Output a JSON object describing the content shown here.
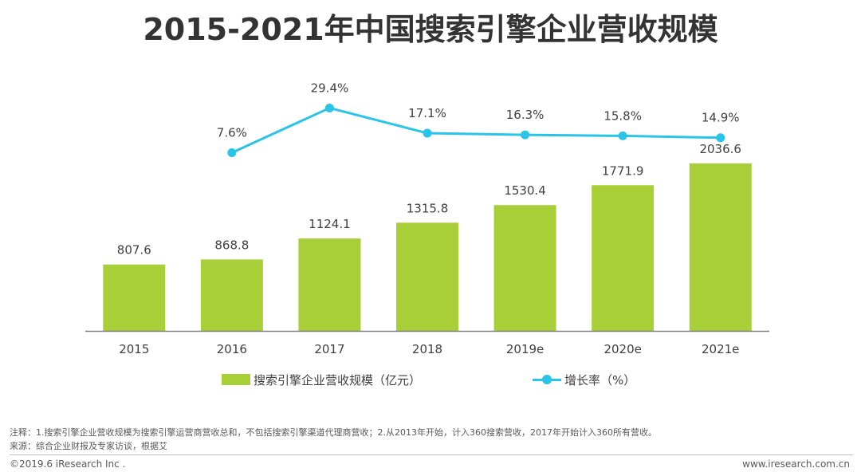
{
  "title": "2015-2021年中国搜索引擎企业营收规模",
  "colors": {
    "bar": "#a9cf38",
    "line": "#29c4e8",
    "axis": "#808080",
    "text": "#404040"
  },
  "chart_data": {
    "type": "bar",
    "categories": [
      "2015",
      "2016",
      "2017",
      "2018",
      "2019e",
      "2020e",
      "2021e"
    ],
    "series": [
      {
        "name": "搜索引擎企业营收规模（亿元）",
        "type": "bar",
        "values": [
          807.6,
          868.8,
          1124.1,
          1315.8,
          1530.4,
          1771.9,
          2036.6
        ],
        "labels": [
          "807.6",
          "868.8",
          "1124.1",
          "1315.8",
          "1530.4",
          "1771.9",
          "2036.6"
        ]
      },
      {
        "name": "增长率（%）",
        "type": "line",
        "values": [
          null,
          7.6,
          29.4,
          17.1,
          16.3,
          15.8,
          14.9
        ],
        "labels": [
          "",
          "7.6%",
          "29.4%",
          "17.1%",
          "16.3%",
          "15.8%",
          "14.9%"
        ]
      }
    ],
    "ylim": [
      0,
      2100
    ],
    "grid": false,
    "legend_position": "bottom"
  },
  "footer": {
    "note": "注释：1.搜索引擎企业营收规模为搜索引擎运营商营收总和，不包括搜索引擎渠道代理商营收；2.从2013年开始，计入360搜索营收，2017年开始计入360所有营收。",
    "source": "来源：综合企业财报及专家访谈，根据艾",
    "copyright": "©2019.6 iResearch Inc .",
    "website": "www.iresearch.com.cn"
  }
}
